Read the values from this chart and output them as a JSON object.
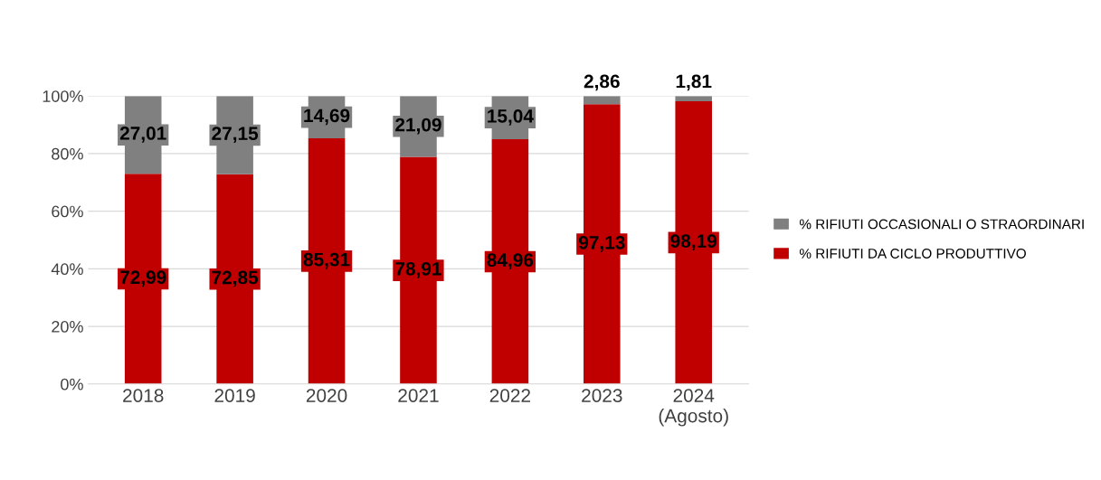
{
  "chart_data": {
    "type": "bar",
    "stacked": true,
    "categories": [
      "2018",
      "2019",
      "2020",
      "2021",
      "2022",
      "2023",
      "2024\n(Agosto)"
    ],
    "series": [
      {
        "name": "% RIFIUTI DA CICLO PRODUTTIVO",
        "color": "#c00000",
        "values": [
          72.99,
          72.85,
          85.31,
          78.91,
          84.96,
          97.13,
          98.19
        ],
        "value_labels": [
          "72,99",
          "72,85",
          "85,31",
          "78,91",
          "84,96",
          "97,13",
          "98,19"
        ]
      },
      {
        "name": "% RIFIUTI OCCASIONALI O STRAORDINARI",
        "color": "#808080",
        "values": [
          27.01,
          27.15,
          14.69,
          21.09,
          15.04,
          2.86,
          1.81
        ],
        "value_labels": [
          "27,01",
          "27,15",
          "14,69",
          "21,09",
          "15,04",
          "2,86",
          "1,81"
        ]
      }
    ],
    "ylim": [
      0,
      100
    ],
    "yticks": [
      {
        "value": 0,
        "label": "0%"
      },
      {
        "value": 20,
        "label": "20%"
      },
      {
        "value": 40,
        "label": "40%"
      },
      {
        "value": 60,
        "label": "60%"
      },
      {
        "value": 80,
        "label": "80%"
      },
      {
        "value": 100,
        "label": "100%"
      }
    ],
    "grid": "y",
    "legend": "right"
  }
}
